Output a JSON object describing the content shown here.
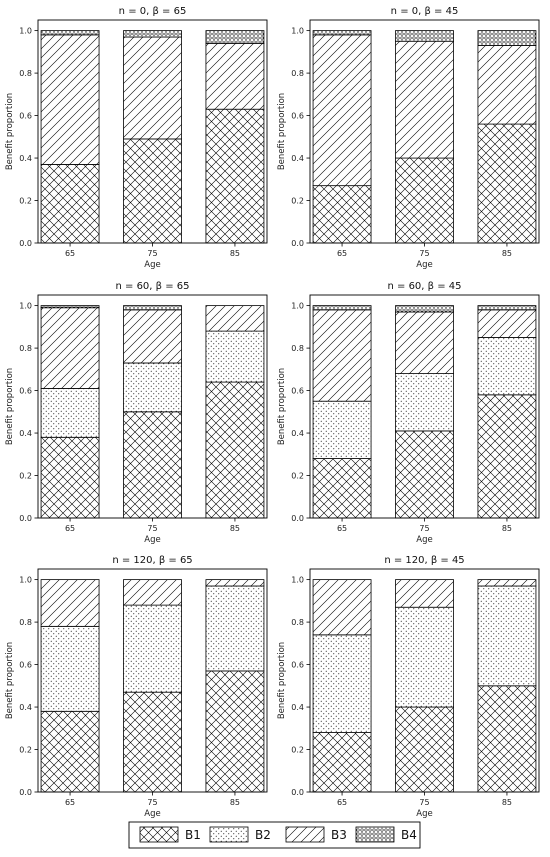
{
  "legend": {
    "entries": [
      "B1",
      "B2",
      "B3",
      "B4"
    ]
  },
  "chart_data": [
    {
      "type": "bar",
      "stacked": true,
      "title": "n = 0, β = 65",
      "xlabel": "Age",
      "ylabel": "Benefit proportion",
      "categories": [
        "65",
        "75",
        "85"
      ],
      "ylim": [
        0,
        1.05
      ],
      "yticks": [
        "0.0",
        "0.2",
        "0.4",
        "0.6",
        "0.8",
        "1.0"
      ],
      "series": [
        {
          "name": "B1",
          "values": [
            0.37,
            0.49,
            0.63
          ]
        },
        {
          "name": "B2",
          "values": [
            0.0,
            0.0,
            0.0
          ]
        },
        {
          "name": "B3",
          "values": [
            0.61,
            0.48,
            0.31
          ]
        },
        {
          "name": "B4",
          "values": [
            0.02,
            0.03,
            0.06
          ]
        }
      ]
    },
    {
      "type": "bar",
      "stacked": true,
      "title": "n = 0, β = 45",
      "xlabel": "Age",
      "ylabel": "Benefit proportion",
      "categories": [
        "65",
        "75",
        "85"
      ],
      "ylim": [
        0,
        1.05
      ],
      "yticks": [
        "0.0",
        "0.2",
        "0.4",
        "0.6",
        "0.8",
        "1.0"
      ],
      "series": [
        {
          "name": "B1",
          "values": [
            0.27,
            0.4,
            0.56
          ]
        },
        {
          "name": "B2",
          "values": [
            0.0,
            0.0,
            0.0
          ]
        },
        {
          "name": "B3",
          "values": [
            0.71,
            0.55,
            0.37
          ]
        },
        {
          "name": "B4",
          "values": [
            0.02,
            0.05,
            0.07
          ]
        }
      ]
    },
    {
      "type": "bar",
      "stacked": true,
      "title": "n = 60, β = 65",
      "xlabel": "Age",
      "ylabel": "Benefit proportion",
      "categories": [
        "65",
        "75",
        "85"
      ],
      "ylim": [
        0,
        1.05
      ],
      "yticks": [
        "0.0",
        "0.2",
        "0.4",
        "0.6",
        "0.8",
        "1.0"
      ],
      "series": [
        {
          "name": "B1",
          "values": [
            0.38,
            0.5,
            0.64
          ]
        },
        {
          "name": "B2",
          "values": [
            0.23,
            0.23,
            0.24
          ]
        },
        {
          "name": "B3",
          "values": [
            0.38,
            0.25,
            0.12
          ]
        },
        {
          "name": "B4",
          "values": [
            0.01,
            0.02,
            0.0
          ]
        }
      ]
    },
    {
      "type": "bar",
      "stacked": true,
      "title": "n = 60, β = 45",
      "xlabel": "Age",
      "ylabel": "Benefit proportion",
      "categories": [
        "65",
        "75",
        "85"
      ],
      "ylim": [
        0,
        1.05
      ],
      "yticks": [
        "0.0",
        "0.2",
        "0.4",
        "0.6",
        "0.8",
        "1.0"
      ],
      "series": [
        {
          "name": "B1",
          "values": [
            0.28,
            0.41,
            0.58
          ]
        },
        {
          "name": "B2",
          "values": [
            0.27,
            0.27,
            0.27
          ]
        },
        {
          "name": "B3",
          "values": [
            0.43,
            0.29,
            0.13
          ]
        },
        {
          "name": "B4",
          "values": [
            0.02,
            0.03,
            0.02
          ]
        }
      ]
    },
    {
      "type": "bar",
      "stacked": true,
      "title": "n = 120, β = 65",
      "xlabel": "Age",
      "ylabel": "Benefit proportion",
      "categories": [
        "65",
        "75",
        "85"
      ],
      "ylim": [
        0,
        1.05
      ],
      "yticks": [
        "0.0",
        "0.2",
        "0.4",
        "0.6",
        "0.8",
        "1.0"
      ],
      "series": [
        {
          "name": "B1",
          "values": [
            0.38,
            0.47,
            0.57
          ]
        },
        {
          "name": "B2",
          "values": [
            0.4,
            0.41,
            0.4
          ]
        },
        {
          "name": "B3",
          "values": [
            0.22,
            0.12,
            0.03
          ]
        },
        {
          "name": "B4",
          "values": [
            0.0,
            0.0,
            0.0
          ]
        }
      ]
    },
    {
      "type": "bar",
      "stacked": true,
      "title": "n = 120, β = 45",
      "xlabel": "Age",
      "ylabel": "Benefit proportion",
      "categories": [
        "65",
        "75",
        "85"
      ],
      "ylim": [
        0,
        1.05
      ],
      "yticks": [
        "0.0",
        "0.2",
        "0.4",
        "0.6",
        "0.8",
        "1.0"
      ],
      "series": [
        {
          "name": "B1",
          "values": [
            0.28,
            0.4,
            0.5
          ]
        },
        {
          "name": "B2",
          "values": [
            0.46,
            0.47,
            0.47
          ]
        },
        {
          "name": "B3",
          "values": [
            0.26,
            0.13,
            0.03
          ]
        },
        {
          "name": "B4",
          "values": [
            0.0,
            0.0,
            0.0
          ]
        }
      ]
    }
  ]
}
